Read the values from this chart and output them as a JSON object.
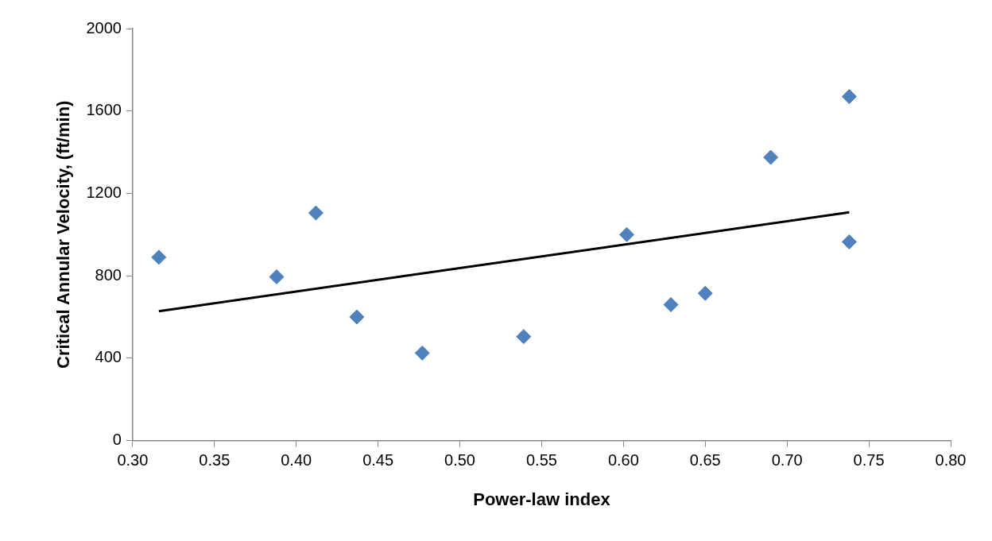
{
  "chart_data": {
    "type": "scatter",
    "xlabel": "Power-law index",
    "ylabel": "Critical Annular Velocity, (ft/min)",
    "xlim": [
      0.3,
      0.8
    ],
    "xticks": [
      {
        "value": 0.3,
        "label": "0.30"
      },
      {
        "value": 0.35,
        "label": "0.35"
      },
      {
        "value": 0.4,
        "label": "0.40"
      },
      {
        "value": 0.45,
        "label": "0.45"
      },
      {
        "value": 0.5,
        "label": "0.50"
      },
      {
        "value": 0.55,
        "label": "0.55"
      },
      {
        "value": 0.6,
        "label": "0.60"
      },
      {
        "value": 0.65,
        "label": "0.65"
      },
      {
        "value": 0.7,
        "label": "0.70"
      },
      {
        "value": 0.75,
        "label": "0.75"
      },
      {
        "value": 0.8,
        "label": "0.80"
      }
    ],
    "ylim": [
      0,
      2000
    ],
    "yticks": [
      0,
      400,
      800,
      1200,
      1600,
      2000
    ],
    "grid": false,
    "legend": false,
    "marker": "diamond",
    "series": [
      {
        "color": "#4f81bd",
        "x": [
          0.316,
          0.388,
          0.412,
          0.437,
          0.477,
          0.539,
          0.602,
          0.629,
          0.65,
          0.69,
          0.738,
          0.738
        ],
        "values": [
          890,
          795,
          1105,
          600,
          425,
          505,
          1000,
          660,
          715,
          1375,
          1670,
          965
        ]
      },
      {
        "type": "line",
        "marker": "none",
        "color": "#000000",
        "x": [
          0.316,
          0.738
        ],
        "values": [
          628,
          1108
        ]
      }
    ]
  }
}
